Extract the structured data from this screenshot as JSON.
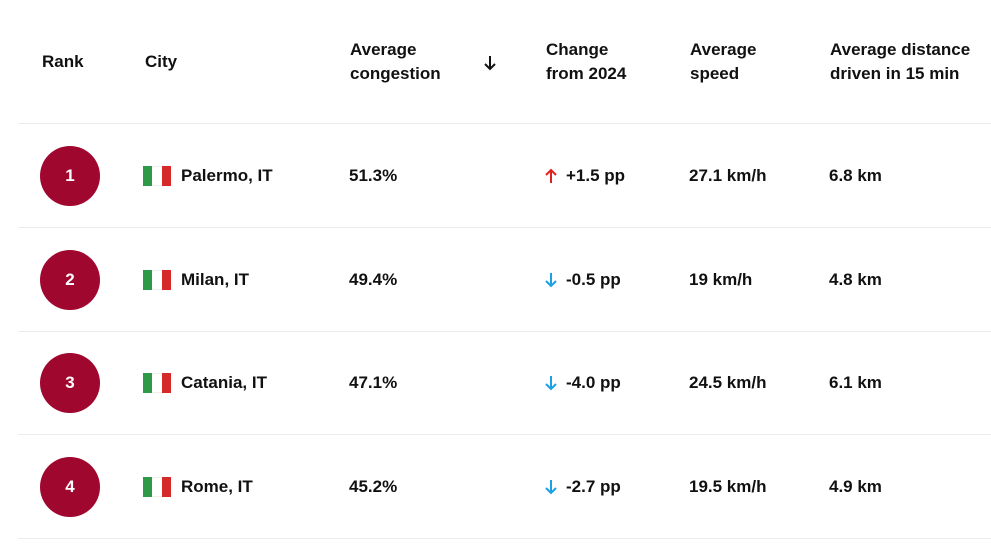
{
  "table": {
    "headers": [
      "Rank",
      "City",
      "Average congestion",
      "Change from 2024",
      "Average speed",
      "Average distance driven in 15 min"
    ],
    "rows": [
      [
        "1",
        "Palermo, IT",
        "51.3%",
        "+1.5 pp",
        "27.1 km/h",
        "6.8 km"
      ],
      [
        "2",
        "Milan, IT",
        "49.4%",
        "-0.5 pp",
        "19 km/h",
        "4.8 km"
      ],
      [
        "3",
        "Catania, IT",
        "47.1%",
        "-4.0 pp",
        "24.5 km/h",
        "6.1 km"
      ],
      [
        "4",
        "Rome, IT",
        "45.2%",
        "-2.7 pp",
        "19.5 km/h",
        "4.9 km"
      ]
    ]
  }
}
